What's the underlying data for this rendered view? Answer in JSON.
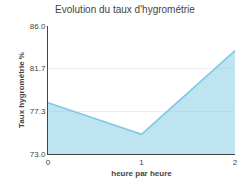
{
  "chart_data": {
    "type": "area",
    "title": "Evolution du taux d'hygrométrie",
    "xlabel": "heure par heure",
    "ylabel": "Taux hygrométrie %",
    "x": [
      0,
      1,
      2
    ],
    "values": [
      78.2,
      75.0,
      83.5
    ],
    "color": "#7ec8e3",
    "xlim": [
      0,
      2
    ],
    "xticks": [
      0,
      1,
      2
    ],
    "ylim": [
      73.0,
      86.0
    ],
    "yticks": [
      {
        "value": 73.0,
        "label": "73.0"
      },
      77.3,
      81.7,
      {
        "value": 86.0,
        "label": "86.0"
      }
    ],
    "grid": "y"
  }
}
